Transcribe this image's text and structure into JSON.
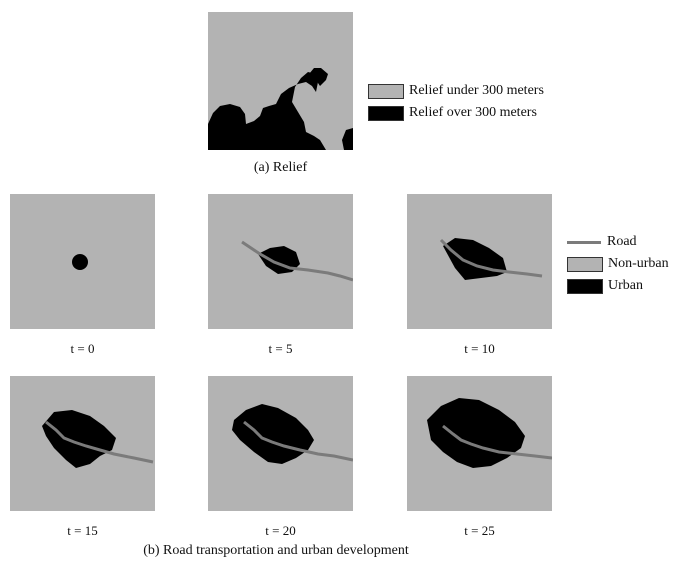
{
  "colors": {
    "nonurban": "#b3b3b3",
    "urban": "#000000",
    "road": "#7b7b7b",
    "legend_border": "#333333"
  },
  "relief": {
    "caption": "(a) Relief",
    "legend": [
      {
        "label": "Relief under 300 meters",
        "color": "#b3b3b3"
      },
      {
        "label": "Relief over 300 meters",
        "color": "#000000"
      }
    ]
  },
  "development": {
    "caption": "(b) Road transportation and urban development",
    "legend": {
      "road": "Road",
      "nonurban": "Non-urban",
      "urban": "Urban"
    },
    "panels": [
      {
        "label": "t = 0"
      },
      {
        "label": "t = 5"
      },
      {
        "label": "t = 10"
      },
      {
        "label": "t = 15"
      },
      {
        "label": "t = 20"
      },
      {
        "label": "t = 25"
      }
    ]
  }
}
